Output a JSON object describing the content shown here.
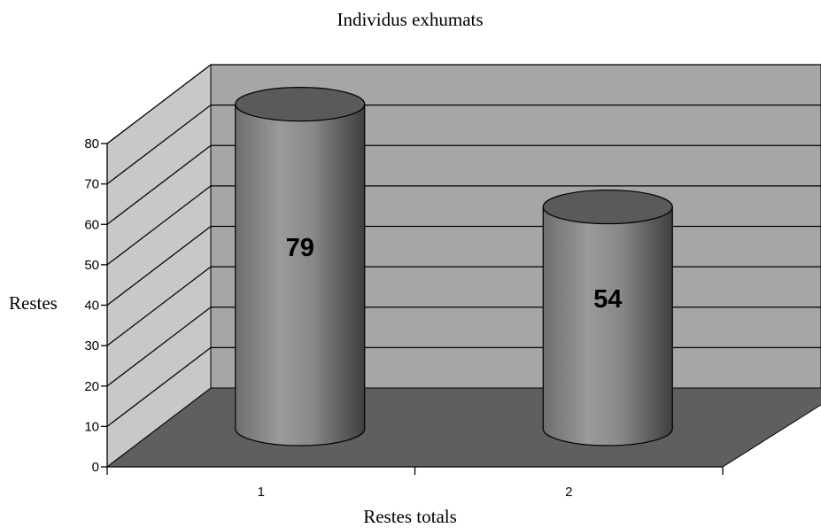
{
  "chart_data": {
    "type": "bar",
    "style": "3d-cylinder",
    "title": "Individus exhumats",
    "xlabel": "Restes totals",
    "ylabel": "Restes",
    "categories": [
      "1",
      "2"
    ],
    "series": [
      {
        "values": [
          79,
          54
        ]
      }
    ],
    "data_labels": [
      "79",
      "54"
    ],
    "ylim": [
      0,
      80
    ],
    "yticks": [
      "0",
      "10",
      "20",
      "30",
      "40",
      "50",
      "60",
      "70",
      "80"
    ],
    "grid": true,
    "legend": "none",
    "colors": {
      "back_wall": "#a6a6a6",
      "side_wall": "#c8c8c8",
      "floor": "#5f5f5f",
      "bar_body": "#8a8a8a",
      "bar_top": "#5a5a5a"
    }
  }
}
